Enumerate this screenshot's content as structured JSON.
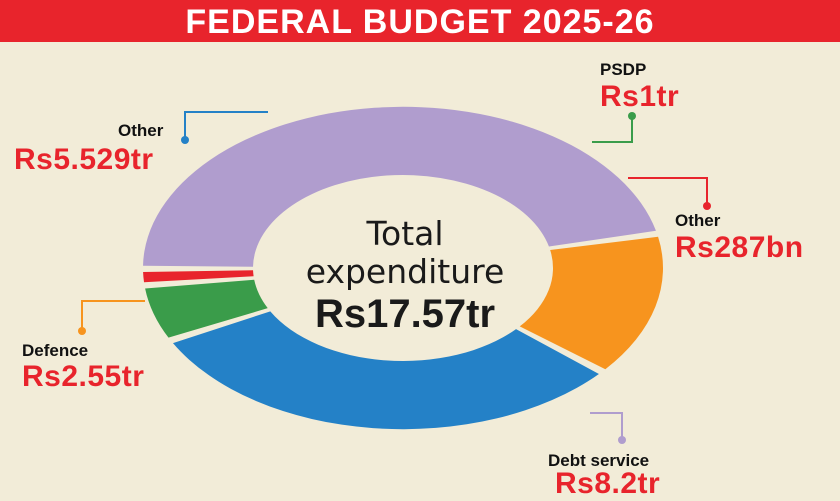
{
  "banner": {
    "title": "FEDERAL BUDGET 2025-26"
  },
  "center": {
    "line1": "Total",
    "line2": "expenditure",
    "line3": "Rs17.57tr"
  },
  "colors": {
    "background": "#f2ecd8",
    "banner": "#e8242c",
    "value_text": "#e8242c",
    "other_blue": "#2481c7",
    "psdp_green": "#3a9c4a",
    "other_red": "#e8242c",
    "debt_purple": "#b09dce",
    "defence_orange": "#f7941e"
  },
  "chart_data": {
    "type": "pie",
    "title": "FEDERAL BUDGET 2025-26",
    "total_label": "Rs17.57tr",
    "unit": "Rs trillion",
    "slices": [
      {
        "label": "Other",
        "display": "Rs5.529tr",
        "value": 5.529,
        "color": "#2481c7"
      },
      {
        "label": "PSDP",
        "display": "Rs1tr",
        "value": 1.0,
        "color": "#3a9c4a"
      },
      {
        "label": "Other",
        "display": "Rs287bn",
        "value": 0.287,
        "color": "#e8242c"
      },
      {
        "label": "Debt service",
        "display": "Rs8.2tr",
        "value": 8.2,
        "color": "#b09dce"
      },
      {
        "label": "Defence",
        "display": "Rs2.55tr",
        "value": 2.55,
        "color": "#f7941e"
      }
    ]
  }
}
